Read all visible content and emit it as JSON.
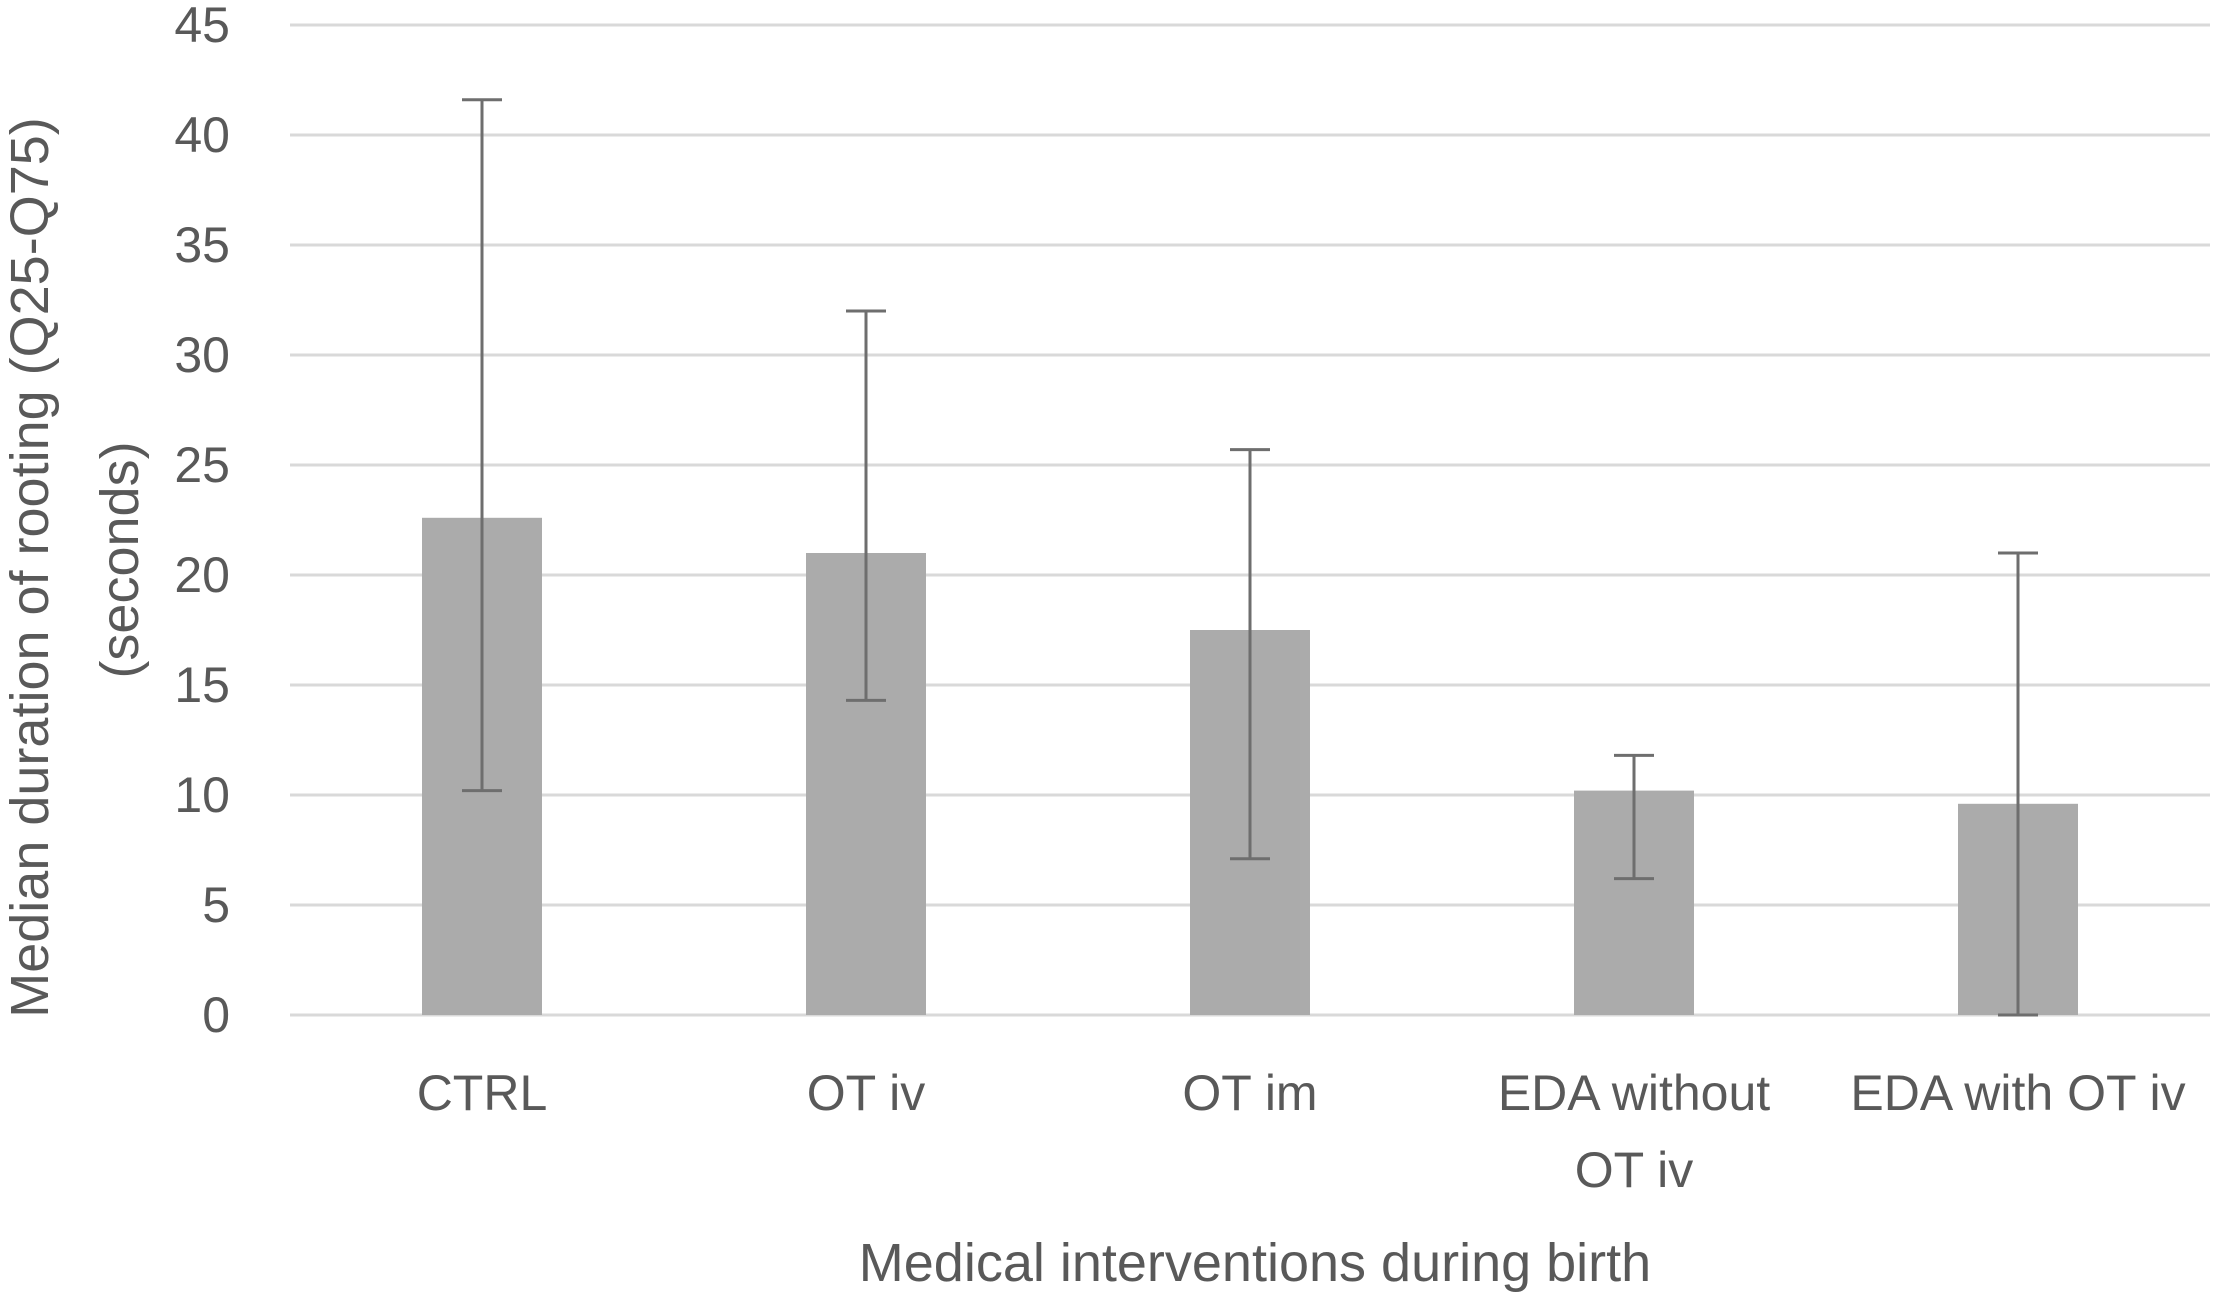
{
  "chart_data": {
    "type": "bar",
    "title": "",
    "xlabel": "Medical interventions during birth",
    "ylabel_lines": [
      "Median duration of rooting (Q25-Q75)",
      "(seconds)"
    ],
    "ylim": [
      0,
      45
    ],
    "yticks": [
      0,
      5,
      10,
      15,
      20,
      25,
      30,
      35,
      40,
      45
    ],
    "grid": true,
    "categories": [
      [
        "CTRL"
      ],
      [
        "OT iv"
      ],
      [
        "OT im"
      ],
      [
        "EDA without",
        "OT iv"
      ],
      [
        "EDA with OT iv"
      ]
    ],
    "series": [
      {
        "name": "Median duration of rooting",
        "values": [
          22.6,
          21.0,
          17.5,
          10.2,
          9.6
        ],
        "q25": [
          10.2,
          14.3,
          7.1,
          6.2,
          0
        ],
        "q75": [
          41.6,
          32.0,
          25.7,
          11.8,
          21.0
        ]
      }
    ],
    "colors": {
      "bar": "#ababab",
      "error_bar": "#6e6e6e",
      "grid": "#d9d9d9",
      "text": "#595959"
    }
  }
}
